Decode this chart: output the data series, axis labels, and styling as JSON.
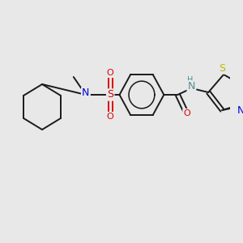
{
  "background_color": "#e8e8e8",
  "black": "#1a1a1a",
  "blue": "#0000dd",
  "red": "#dd0000",
  "yellow": "#bbbb00",
  "teal": "#4a9090",
  "lw": 1.4,
  "figsize": [
    3.0,
    3.0
  ],
  "dpi": 100,
  "xlim": [
    0,
    300
  ],
  "ylim": [
    0,
    300
  ]
}
